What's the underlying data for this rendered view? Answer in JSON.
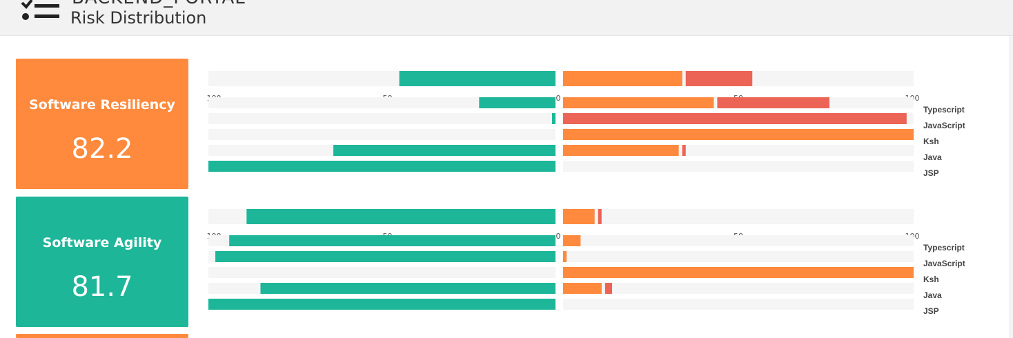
{
  "header": {
    "title": "BACKEND_PORTAL",
    "subtitle": "Risk Distribution",
    "icon": "checklist-icon"
  },
  "colors": {
    "orange": "#ff8a3d",
    "teal": "#1db699",
    "red": "#eb6456",
    "track": "#f5f5f5"
  },
  "cards": [
    {
      "label": "Software Resiliency",
      "score": "82.2",
      "color": "#ff8a3d"
    },
    {
      "label": "Software Agility",
      "score": "81.7",
      "color": "#1db699"
    }
  ],
  "chart_data": [
    {
      "type": "bar",
      "axis": {
        "left_ticks": [
          "100",
          "50",
          "0"
        ],
        "right_ticks": [
          "0",
          "50",
          "100"
        ],
        "range": [
          0,
          100
        ]
      },
      "summary": {
        "left": 45,
        "right_orange": 34,
        "right_red": 19
      },
      "categories": [
        "Typescript",
        "JavaScript",
        "Ksh",
        "Java",
        "JSP"
      ],
      "left_values": [
        22,
        1,
        0,
        64,
        100
      ],
      "right_orange": [
        43,
        0,
        100,
        33,
        0
      ],
      "right_red": [
        32,
        98,
        0,
        1,
        0
      ]
    },
    {
      "type": "bar",
      "axis": {
        "left_ticks": [
          "100",
          "50",
          "0"
        ],
        "right_ticks": [
          "0",
          "50",
          "100"
        ],
        "range": [
          0,
          100
        ]
      },
      "summary": {
        "left": 89,
        "right_orange": 9,
        "right_red": 1
      },
      "categories": [
        "Typescript",
        "JavaScript",
        "Ksh",
        "Java",
        "JSP"
      ],
      "left_values": [
        94,
        98,
        0,
        85,
        100
      ],
      "right_orange": [
        5,
        1,
        100,
        11,
        0
      ],
      "right_red": [
        0,
        0,
        0,
        2,
        0
      ]
    }
  ],
  "partial_card_color": "#ff8a3d"
}
